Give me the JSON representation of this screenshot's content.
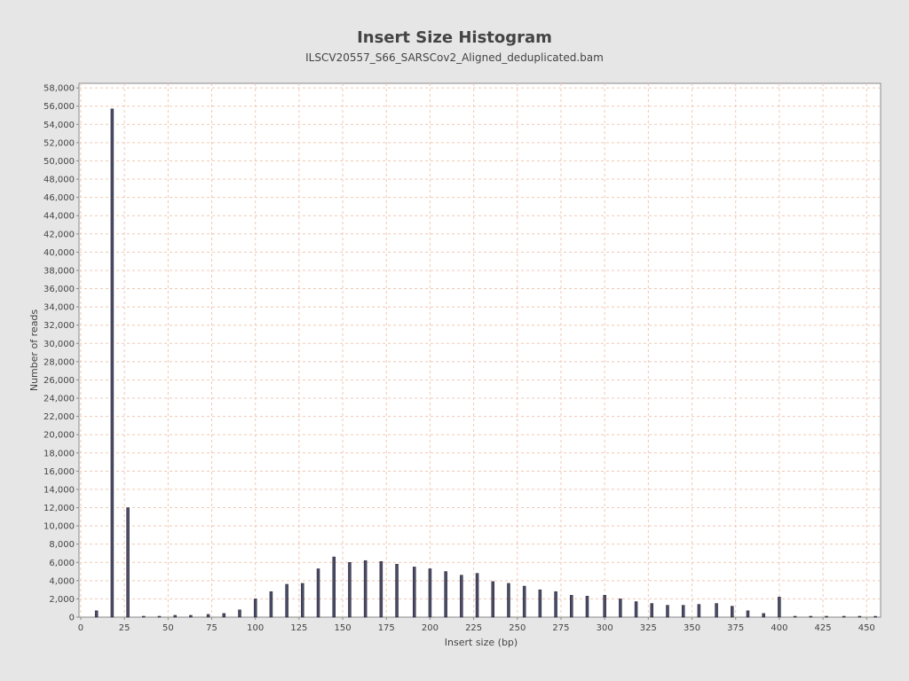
{
  "chart_data": {
    "type": "bar",
    "title": "Insert Size Histogram",
    "subtitle": "ILSCV20557_S66_SARSCov2_Aligned_deduplicated.bam",
    "xlabel": "Insert size (bp)",
    "ylabel": "Number of reads",
    "xlim": [
      -1,
      458
    ],
    "ylim": [
      0,
      58500
    ],
    "x_ticks": [
      0,
      25,
      50,
      75,
      100,
      125,
      150,
      175,
      200,
      225,
      250,
      275,
      300,
      325,
      350,
      375,
      400,
      425,
      450
    ],
    "y_ticks": [
      0,
      2000,
      4000,
      6000,
      8000,
      10000,
      12000,
      14000,
      16000,
      18000,
      20000,
      22000,
      24000,
      26000,
      28000,
      30000,
      32000,
      34000,
      36000,
      38000,
      40000,
      42000,
      44000,
      46000,
      48000,
      50000,
      52000,
      54000,
      56000,
      58000
    ],
    "grid": true,
    "bar_color": "#4b4b66",
    "series": [
      {
        "x": [
          9,
          18,
          27,
          36,
          45,
          54,
          63,
          73,
          82,
          91,
          100,
          109,
          118,
          127,
          136,
          145,
          154,
          163,
          172,
          181,
          191,
          200,
          209,
          218,
          227,
          236,
          245,
          254,
          263,
          272,
          281,
          290,
          300,
          309,
          318,
          327,
          336,
          345,
          354,
          364,
          373,
          382,
          391,
          400,
          409,
          418,
          427,
          437,
          446,
          455
        ],
        "values": [
          700,
          55700,
          12000,
          100,
          100,
          200,
          200,
          300,
          400,
          800,
          2000,
          2800,
          3600,
          3700,
          5300,
          6600,
          6000,
          6200,
          6100,
          5800,
          5500,
          5300,
          5000,
          4600,
          4800,
          3900,
          3700,
          3400,
          3000,
          2800,
          2400,
          2300,
          2400,
          2000,
          1700,
          1500,
          1300,
          1300,
          1400,
          1500,
          1200,
          700,
          400,
          2200,
          100,
          100,
          100,
          100,
          100,
          50
        ]
      }
    ]
  }
}
